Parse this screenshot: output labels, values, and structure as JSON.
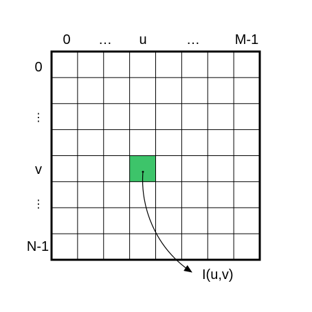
{
  "column_labels": {
    "first": "0",
    "ellipsis_left": "…",
    "middle": "u",
    "ellipsis_right": "…",
    "last": "M-1"
  },
  "row_labels": {
    "first": "0",
    "dots_upper": "⋮",
    "middle": "v",
    "dots_lower": "⋮",
    "last": "N-1"
  },
  "pixel_label": "I(u,v)",
  "grid": {
    "columns": 8,
    "rows": 8,
    "highlight_column": 3,
    "highlight_row": 4
  },
  "colors": {
    "highlight": "#3dc46a",
    "grid_line": "#000000",
    "border": "#000000",
    "background": "#ffffff"
  }
}
